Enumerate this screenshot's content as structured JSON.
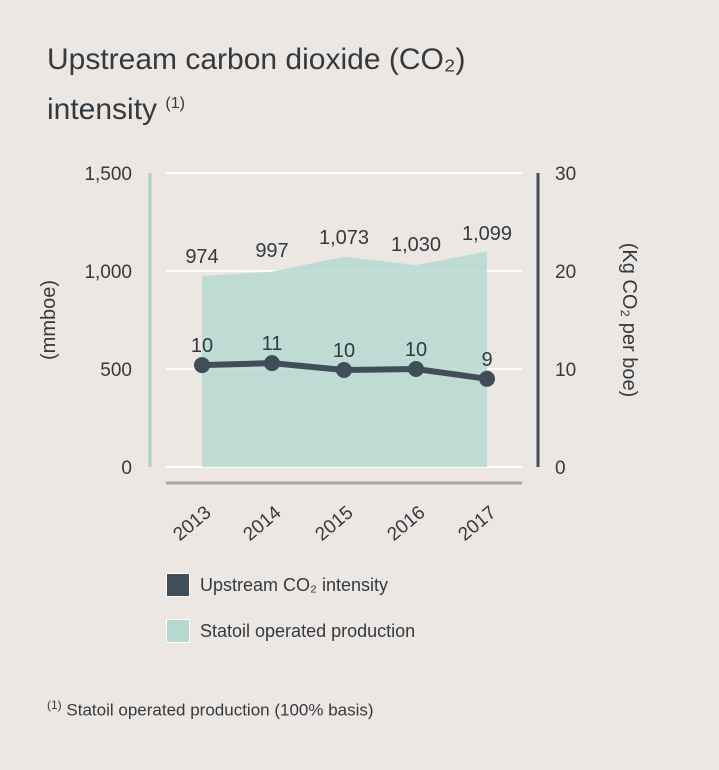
{
  "title": {
    "line1": "Upstream carbon dioxide (CO₂)",
    "line2": "intensity",
    "note_marker": "(1)"
  },
  "legend": {
    "intensity_label": "Upstream CO₂ intensity",
    "production_label": "Statoil operated production"
  },
  "footnote": {
    "marker": "(1)",
    "text": "Statoil operated production (100% basis)"
  },
  "colors": {
    "background": "#ece7e3",
    "intensity": "#3f4e58",
    "production": "#b6d8d1",
    "left_axis": "#a8d0c9",
    "right_axis": "#3f4e58",
    "grid": "#ffffff",
    "baseline": "#a9a6a3"
  },
  "chart_data": {
    "type": "area",
    "categories": [
      "2013",
      "2014",
      "2015",
      "2016",
      "2017"
    ],
    "left_axis": {
      "label": "(mmboe)",
      "ylim": [
        0,
        1500
      ],
      "ticks": [
        "0",
        "500",
        "1,000",
        "1,500"
      ]
    },
    "right_axis": {
      "label": "(Kg CO₂ per boe)",
      "ylim": [
        0,
        30
      ],
      "ticks": [
        "0",
        "10",
        "20",
        "30"
      ]
    },
    "grid": true,
    "series": [
      {
        "name": "Statoil operated production",
        "type": "area",
        "axis": "left",
        "values": [
          974,
          997,
          1073,
          1030,
          1099
        ],
        "labels": [
          "974",
          "997",
          "1,073",
          "1,030",
          "1,099"
        ]
      },
      {
        "name": "Upstream CO₂ intensity",
        "type": "line",
        "axis": "right",
        "values": [
          10.4,
          10.6,
          9.9,
          10.0,
          9.0
        ],
        "labels": [
          "10",
          "11",
          "10",
          "10",
          "9"
        ]
      }
    ]
  }
}
